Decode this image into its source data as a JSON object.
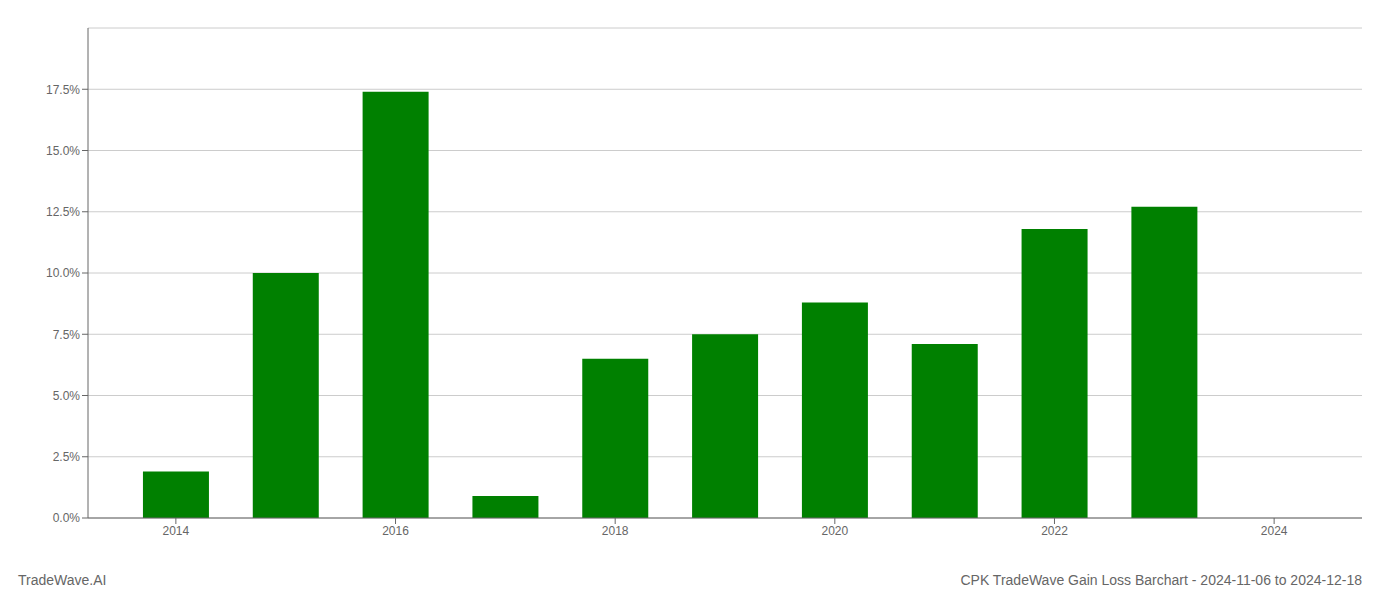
{
  "chart_data": {
    "type": "bar",
    "title": "CPK TradeWave Gain Loss Barchart - 2024-11-06 to 2024-12-18",
    "annotations": [
      "TradeWave.AI"
    ],
    "x": [
      2014,
      2015,
      2016,
      2017,
      2018,
      2019,
      2020,
      2021,
      2022,
      2023
    ],
    "values": [
      0.019,
      0.1,
      0.174,
      0.009,
      0.065,
      0.075,
      0.088,
      0.071,
      0.118,
      0.127
    ],
    "color": "#008000",
    "xlim": [
      2013.2,
      2024.8
    ],
    "xticks": [
      2014,
      2016,
      2018,
      2020,
      2022,
      2024
    ],
    "ylim": [
      0,
      0.2
    ],
    "yticks": [
      {
        "value": 0.0,
        "label": "0.0%"
      },
      {
        "value": 0.025,
        "label": "2.5%"
      },
      {
        "value": 0.05,
        "label": "5.0%"
      },
      {
        "value": 0.075,
        "label": "7.5%"
      },
      {
        "value": 0.1,
        "label": "10.0%"
      },
      {
        "value": 0.125,
        "label": "12.5%"
      },
      {
        "value": 0.15,
        "label": "15.0%"
      },
      {
        "value": 0.175,
        "label": "17.5%"
      }
    ],
    "grid": true
  }
}
